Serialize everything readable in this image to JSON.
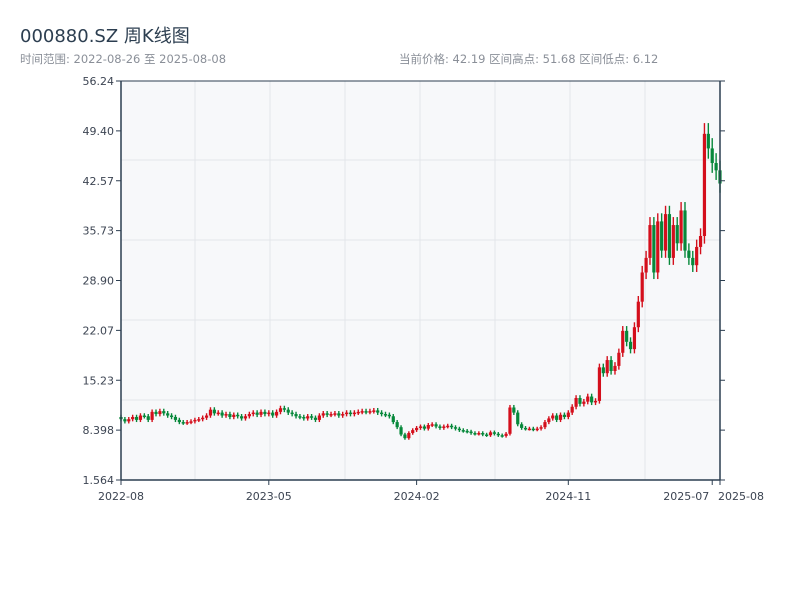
{
  "header": {
    "title": "000880.SZ 周K线图",
    "range": "时间范围: 2022-08-26 至 2025-08-08",
    "stats": "当前价格: 42.19  区间高点: 51.68  区间低点: 6.12"
  },
  "chart_data": {
    "type": "candlestick",
    "title": "000880.SZ 周K线图",
    "ylim": [
      1.564,
      56.24
    ],
    "yticks": [
      "56.24",
      "49.40",
      "42.57",
      "35.73",
      "28.90",
      "22.07",
      "15.23",
      "8.398",
      "1.564"
    ],
    "xticks": [
      {
        "label": "2022-08",
        "week": 0
      },
      {
        "label": "2023-05",
        "week": 38
      },
      {
        "label": "2024-02",
        "week": 76
      },
      {
        "label": "2024-11",
        "week": 115
      },
      {
        "label": "2025-07",
        "week": 152
      },
      {
        "label": "2025-08",
        "week": 154
      }
    ],
    "first_open": 10.2,
    "wick_ratio": 0.03,
    "colors": {
      "up": "#d40f1c",
      "down": "#06883a"
    },
    "close": [
      9.9,
      9.6,
      9.9,
      10.2,
      9.8,
      10.4,
      10.3,
      9.8,
      10.9,
      10.6,
      11.0,
      10.7,
      10.4,
      10.2,
      9.8,
      9.5,
      9.4,
      9.5,
      9.6,
      9.8,
      9.9,
      10.1,
      10.4,
      11.2,
      10.7,
      10.8,
      10.4,
      10.6,
      10.2,
      10.5,
      10.3,
      10.0,
      10.3,
      10.6,
      10.8,
      10.5,
      10.9,
      10.6,
      10.8,
      10.4,
      10.9,
      11.4,
      11.2,
      10.8,
      10.6,
      10.3,
      10.2,
      10.0,
      10.3,
      10.1,
      9.8,
      10.4,
      10.7,
      10.5,
      10.6,
      10.7,
      10.4,
      10.6,
      10.8,
      10.6,
      10.8,
      10.9,
      11.0,
      10.9,
      11.0,
      11.1,
      10.8,
      10.6,
      10.5,
      10.3,
      9.5,
      8.8,
      7.8,
      7.3,
      8.0,
      8.4,
      8.7,
      8.9,
      8.6,
      9.1,
      9.2,
      8.9,
      8.7,
      8.9,
      9.0,
      8.8,
      8.6,
      8.4,
      8.3,
      8.2,
      8.0,
      7.9,
      8.0,
      7.8,
      7.7,
      8.1,
      7.9,
      7.7,
      7.6,
      7.9,
      11.5,
      10.8,
      9.2,
      8.7,
      8.6,
      8.6,
      8.5,
      8.6,
      8.8,
      9.5,
      10.0,
      10.4,
      9.8,
      10.5,
      10.2,
      10.8,
      11.6,
      12.8,
      12.0,
      12.3,
      13.0,
      12.2,
      12.4,
      17.0,
      16.2,
      18.0,
      16.5,
      17.2,
      19.0,
      22.0,
      20.5,
      19.5,
      22.5,
      26.0,
      30.0,
      32.0,
      36.5,
      30.0,
      37.0,
      33.0,
      38.0,
      32.0,
      36.5,
      34.0,
      38.5,
      33.0,
      32.0,
      31.0,
      33.5,
      35.0,
      49.0,
      47.0,
      45.0,
      44.0,
      42.19
    ]
  }
}
